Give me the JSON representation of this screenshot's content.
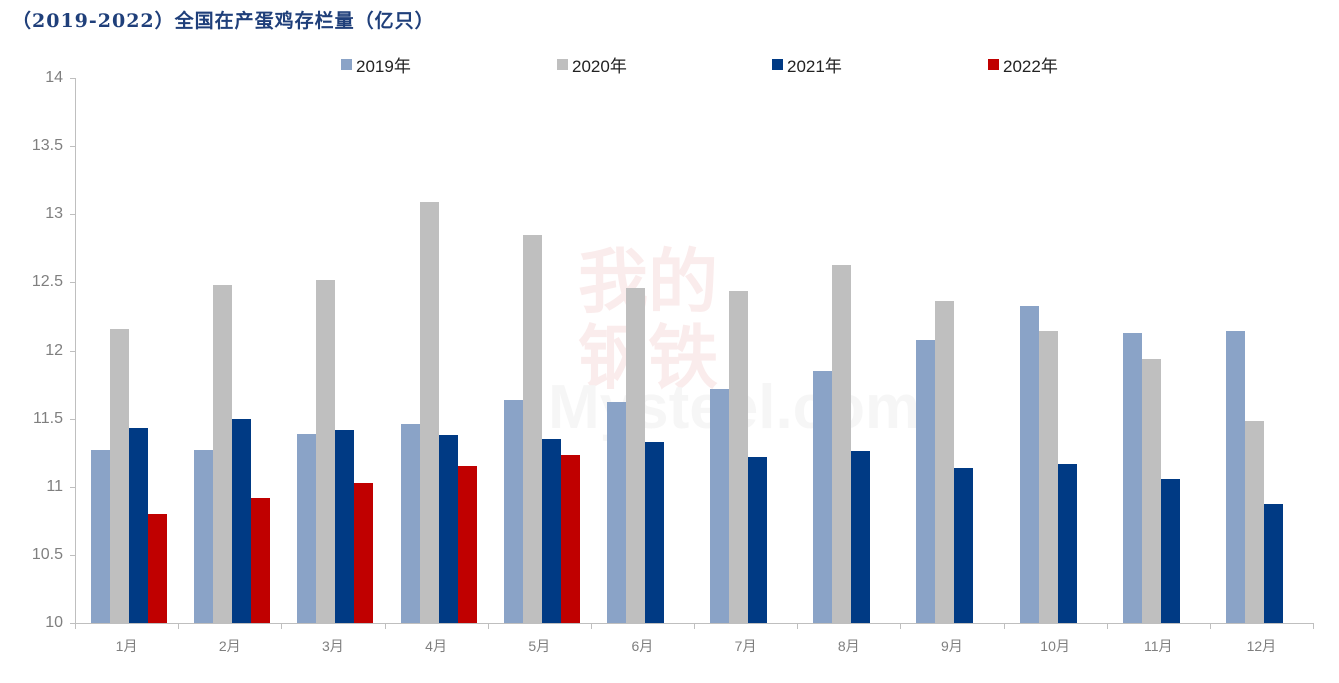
{
  "title": "（2019-2022）全国在产蛋鸡存栏量（亿只）",
  "watermark": {
    "cn": "我的钢铁",
    "en": "Mysteel.com"
  },
  "legend": [
    {
      "label": "2019年",
      "color": "#8aa3c7"
    },
    {
      "label": "2020年",
      "color": "#bfbfbf"
    },
    {
      "label": "2021年",
      "color": "#003a84"
    },
    {
      "label": "2022年",
      "color": "#c00000"
    }
  ],
  "yaxis": {
    "ticks": [
      "14",
      "13.5",
      "13",
      "12.5",
      "12",
      "11.5",
      "11",
      "10.5",
      "10"
    ]
  },
  "xaxis": {
    "ticks": [
      "1月",
      "2月",
      "3月",
      "4月",
      "5月",
      "6月",
      "7月",
      "8月",
      "9月",
      "10月",
      "11月",
      "12月"
    ]
  },
  "chart_data": {
    "type": "bar",
    "title": "（2019-2022）全国在产蛋鸡存栏量（亿只）",
    "xlabel": "",
    "ylabel": "亿只",
    "ylim": [
      10,
      14
    ],
    "grid": false,
    "legend_position": "top",
    "categories": [
      "1月",
      "2月",
      "3月",
      "4月",
      "5月",
      "6月",
      "7月",
      "8月",
      "9月",
      "10月",
      "11月",
      "12月"
    ],
    "series": [
      {
        "name": "2019年",
        "color": "#8aa3c7",
        "values": [
          11.27,
          11.27,
          11.39,
          11.46,
          11.64,
          11.62,
          11.72,
          11.85,
          12.08,
          12.33,
          12.13,
          12.14
        ]
      },
      {
        "name": "2020年",
        "color": "#bfbfbf",
        "values": [
          12.16,
          12.48,
          12.52,
          13.09,
          12.85,
          12.46,
          12.44,
          12.63,
          12.36,
          12.14,
          11.94,
          11.48
        ]
      },
      {
        "name": "2021年",
        "color": "#003a84",
        "values": [
          11.43,
          11.5,
          11.42,
          11.38,
          11.35,
          11.33,
          11.22,
          11.26,
          11.14,
          11.17,
          11.06,
          10.87
        ]
      },
      {
        "name": "2022年",
        "color": "#c00000",
        "values": [
          10.8,
          10.92,
          11.03,
          11.15,
          11.23,
          null,
          null,
          null,
          null,
          null,
          null,
          null
        ]
      }
    ]
  }
}
